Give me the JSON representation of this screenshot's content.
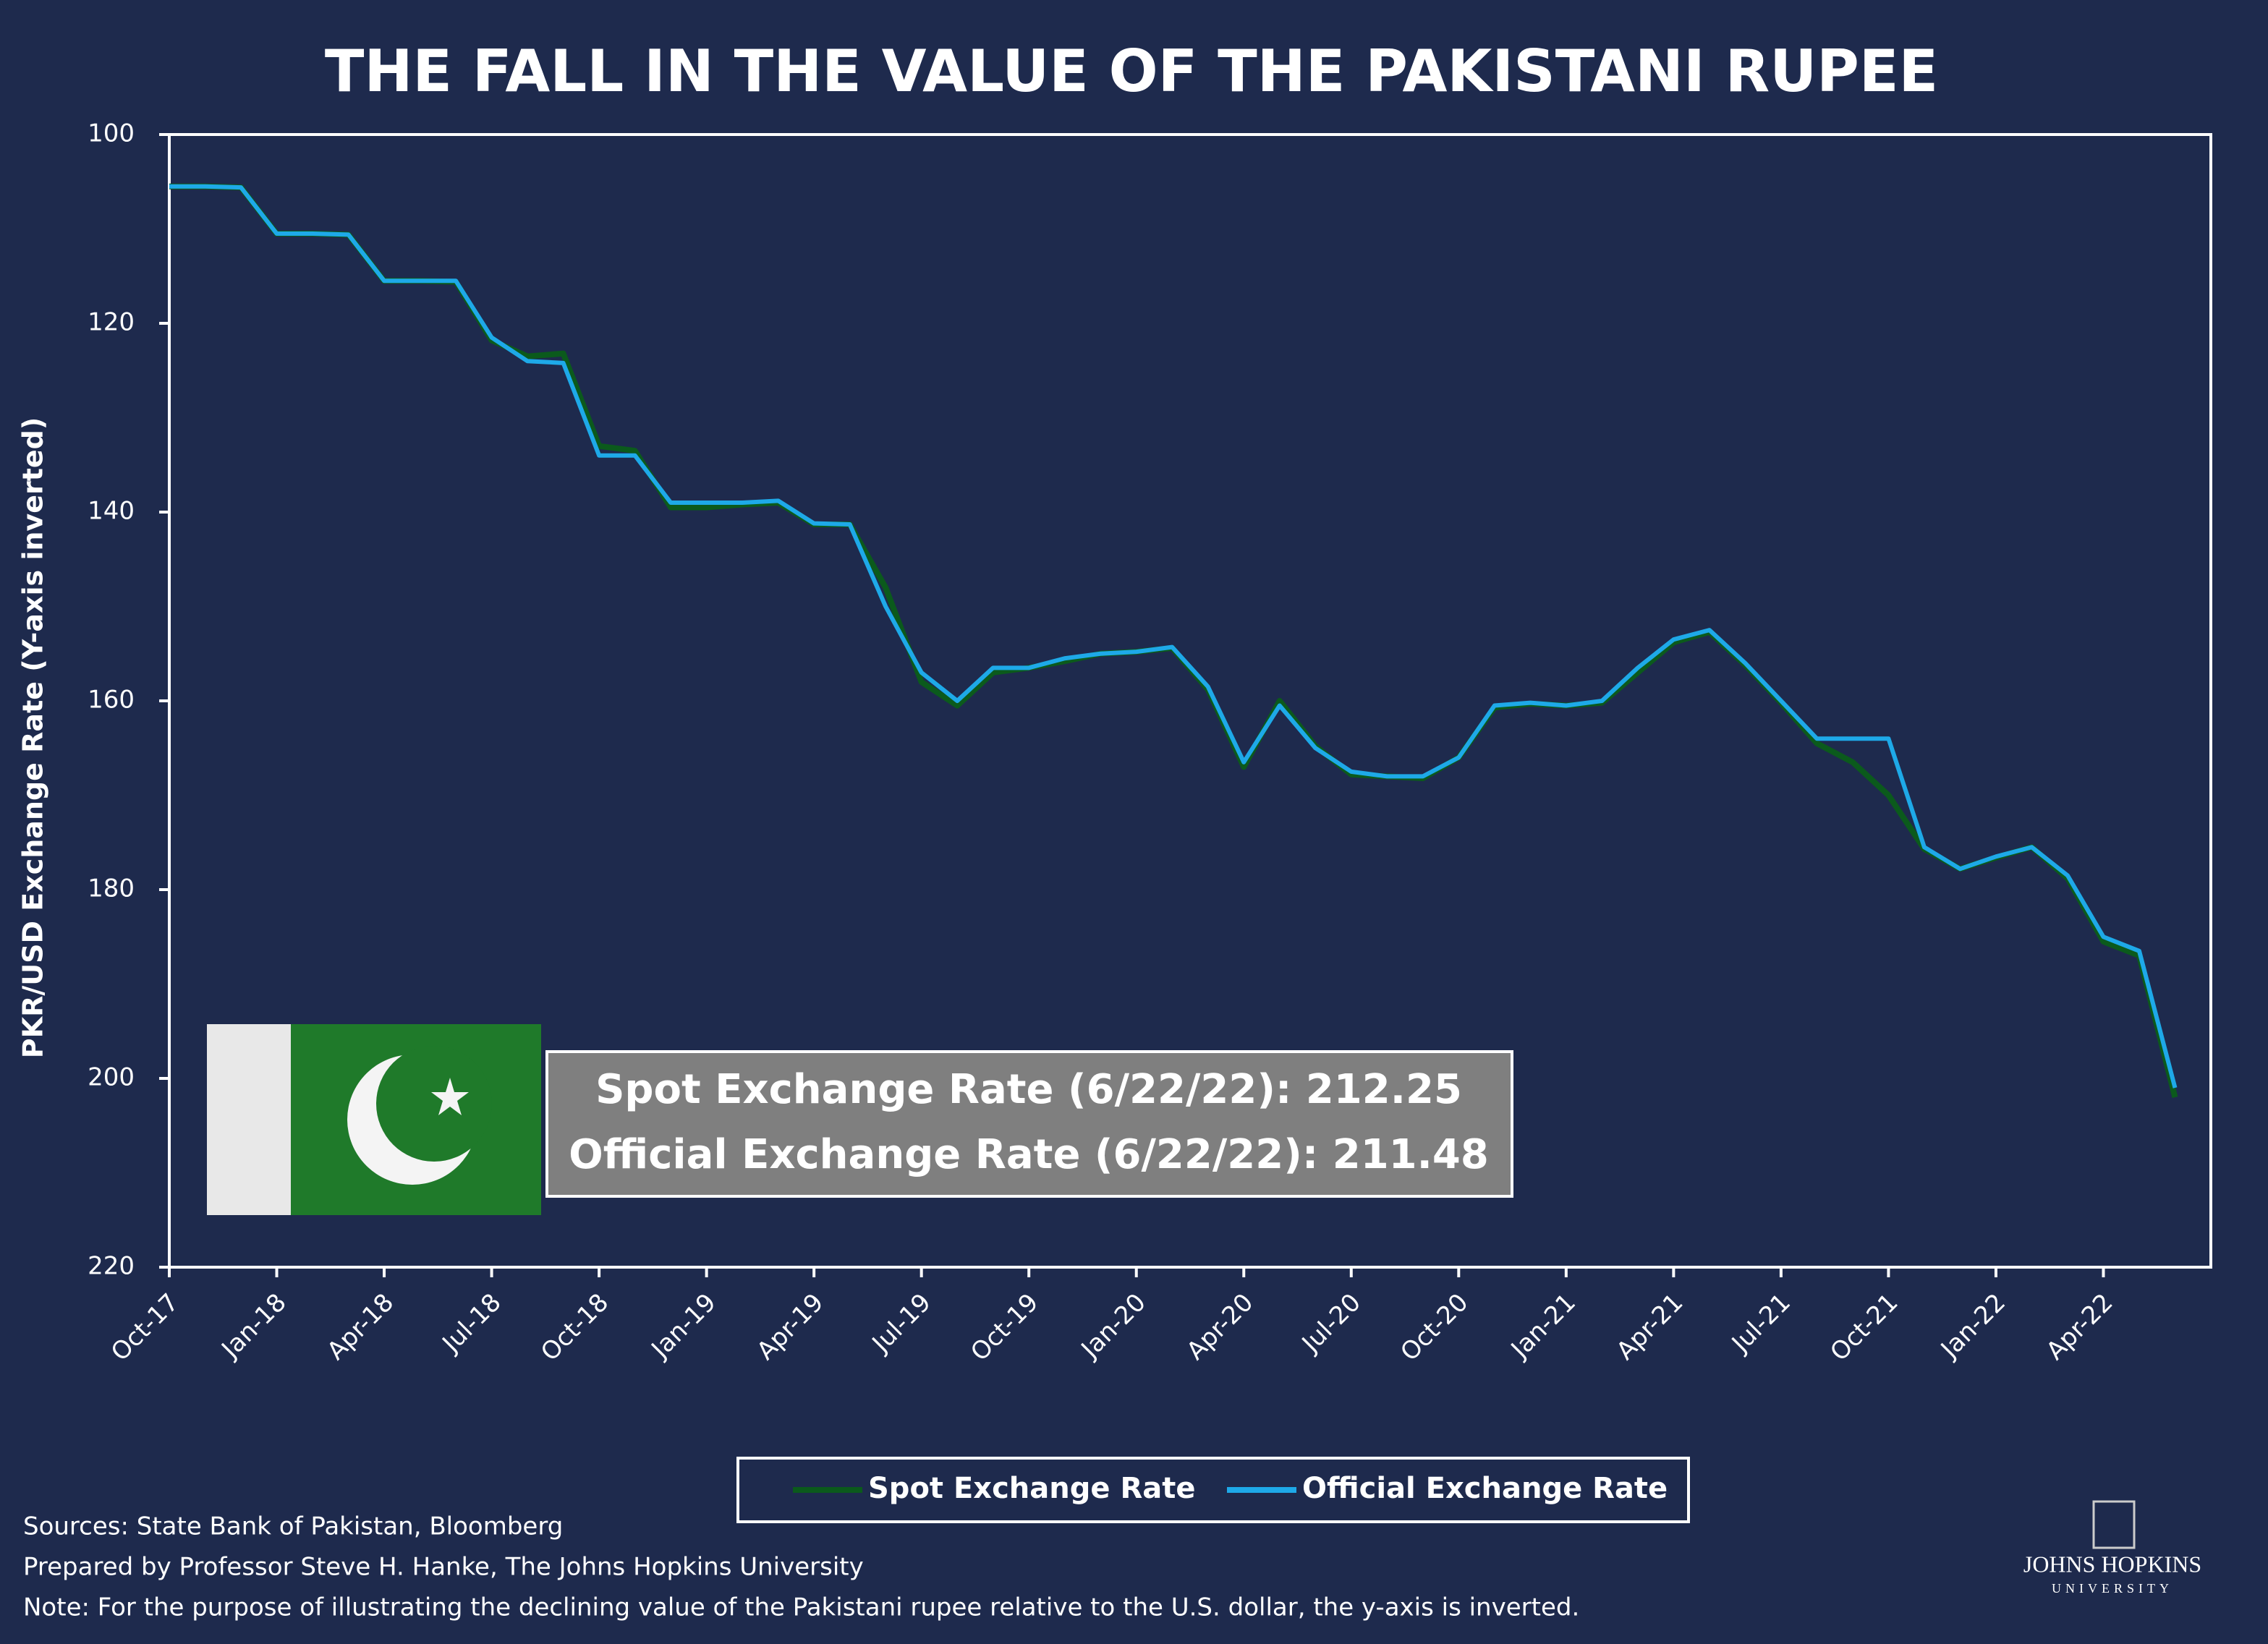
{
  "chart_data": {
    "type": "line",
    "title": "THE FALL IN THE VALUE OF THE PAKISTANI RUPEE",
    "y_label": "PKR/USD Exchange Rate (Y-axis inverted)",
    "y_inverted": true,
    "ylim": [
      100,
      220
    ],
    "yticks": [
      100,
      120,
      140,
      160,
      180,
      200,
      220
    ],
    "xlim": [
      "2017-10",
      "2022-07"
    ],
    "xticks": [
      {
        "value": "2017-10",
        "label": "Oct-17"
      },
      {
        "value": "2018-01",
        "label": "Jan-18"
      },
      {
        "value": "2018-04",
        "label": "Apr-18"
      },
      {
        "value": "2018-07",
        "label": "Jul-18"
      },
      {
        "value": "2018-10",
        "label": "Oct-18"
      },
      {
        "value": "2019-01",
        "label": "Jan-19"
      },
      {
        "value": "2019-04",
        "label": "Apr-19"
      },
      {
        "value": "2019-07",
        "label": "Jul-19"
      },
      {
        "value": "2019-10",
        "label": "Oct-19"
      },
      {
        "value": "2020-01",
        "label": "Jan-20"
      },
      {
        "value": "2020-04",
        "label": "Apr-20"
      },
      {
        "value": "2020-07",
        "label": "Jul-20"
      },
      {
        "value": "2020-10",
        "label": "Oct-20"
      },
      {
        "value": "2021-01",
        "label": "Jan-21"
      },
      {
        "value": "2021-04",
        "label": "Apr-21"
      },
      {
        "value": "2021-07",
        "label": "Jul-21"
      },
      {
        "value": "2021-10",
        "label": "Oct-21"
      },
      {
        "value": "2022-01",
        "label": "Jan-22"
      },
      {
        "value": "2022-04",
        "label": "Apr-22"
      }
    ],
    "x": [
      "2017-10",
      "2017-11",
      "2017-12",
      "2018-01",
      "2018-02",
      "2018-03",
      "2018-04",
      "2018-05",
      "2018-06",
      "2018-07",
      "2018-08",
      "2018-09",
      "2018-10",
      "2018-11",
      "2018-12",
      "2019-01",
      "2019-02",
      "2019-03",
      "2019-04",
      "2019-05",
      "2019-06",
      "2019-07",
      "2019-08",
      "2019-09",
      "2019-10",
      "2019-11",
      "2019-12",
      "2020-01",
      "2020-02",
      "2020-03",
      "2020-04",
      "2020-05",
      "2020-06",
      "2020-07",
      "2020-08",
      "2020-09",
      "2020-10",
      "2020-11",
      "2020-12",
      "2021-01",
      "2021-02",
      "2021-03",
      "2021-04",
      "2021-05",
      "2021-06",
      "2021-07",
      "2021-08",
      "2021-09",
      "2021-10",
      "2021-11",
      "2021-12",
      "2022-01",
      "2022-02",
      "2022-03",
      "2022-04",
      "2022-05",
      "2022-06"
    ],
    "series": [
      {
        "name": "Spot Exchange Rate",
        "color": "#0b5a1c",
        "values": [
          105.5,
          105.5,
          105.6,
          110.5,
          110.5,
          110.6,
          115.5,
          115.5,
          115.6,
          121.8,
          123.5,
          123.2,
          133,
          133.5,
          139.5,
          139.5,
          139.2,
          139,
          141.3,
          141.3,
          148,
          158,
          160.5,
          157,
          156.5,
          155.8,
          155,
          154.8,
          154.4,
          158.8,
          167,
          160,
          164.8,
          167.8,
          168,
          168.2,
          166,
          160.7,
          160.3,
          160.5,
          160.2,
          157,
          153.8,
          152.7,
          156.2,
          160.2,
          164.5,
          166.5,
          170,
          175.7,
          177.8,
          176.6,
          175.5,
          178.8,
          185.5,
          187,
          202
        ]
      },
      {
        "name": "Official Exchange Rate",
        "color": "#1ea9e8",
        "values": [
          105.5,
          105.5,
          105.6,
          110.5,
          110.5,
          110.6,
          115.5,
          115.5,
          115.5,
          121.5,
          124,
          124.2,
          134,
          134,
          139,
          139,
          139,
          138.8,
          141.2,
          141.3,
          150,
          157,
          160,
          156.5,
          156.5,
          155.5,
          155,
          154.8,
          154.3,
          158.5,
          166.5,
          160.5,
          165,
          167.5,
          168,
          168,
          166,
          160.5,
          160.2,
          160.5,
          160,
          156.5,
          153.5,
          152.5,
          156,
          160,
          164,
          164,
          164,
          175.5,
          177.8,
          176.5,
          175.5,
          178.5,
          185,
          186.5,
          201
        ]
      }
    ],
    "annotations": [
      "Spot Exchange Rate (6/22/22): 212.25",
      "Official Exchange Rate (6/22/22): 211.48"
    ],
    "notes": [
      "Sources: State Bank of Pakistan, Bloomberg",
      "Prepared by Professor Steve H. Hanke, The Johns Hopkins University",
      "Note: For the purpose of illustrating the declining value of the Pakistani rupee relative to the U.S. dollar, the y-axis is inverted."
    ],
    "logo": [
      "JOHNS HOPKINS",
      "UNIVERSITY"
    ]
  }
}
